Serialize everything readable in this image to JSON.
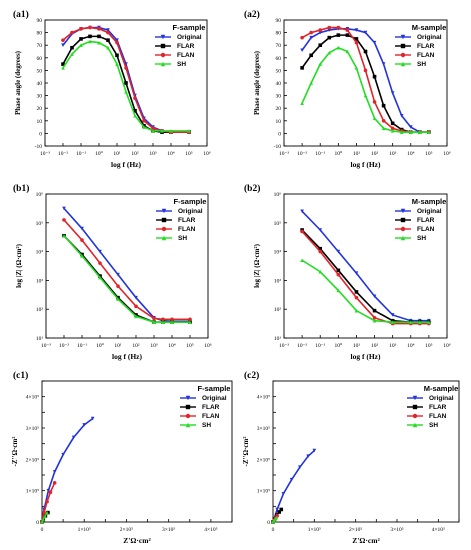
{
  "series_style": [
    {
      "name": "Original",
      "color": "#2233dd",
      "marker": "triangle-down"
    },
    {
      "name": "FLAR",
      "color": "#000000",
      "marker": "square"
    },
    {
      "name": "FLAN",
      "color": "#e0242a",
      "marker": "circle"
    },
    {
      "name": "SH",
      "color": "#22dd22",
      "marker": "triangle-up"
    }
  ],
  "chart_data": [
    {
      "id": "a1",
      "panel_label": "(a1)",
      "type": "line",
      "sample_title": "F-sample",
      "xlabel": "log f (Hz)",
      "ylabel": "Phase angle (degrees)",
      "x_scale": "log",
      "xlim": [
        -3,
        6
      ],
      "ylim": [
        -10,
        90
      ],
      "xticks": [
        -3,
        -2,
        -1,
        0,
        1,
        2,
        3,
        4,
        5,
        6
      ],
      "xtick_labels": [
        "10⁻³",
        "10⁻²",
        "10⁻¹",
        "10⁰",
        "10¹",
        "10²",
        "10³",
        "10⁴",
        "10⁵",
        "10⁶"
      ],
      "yticks": [
        -10,
        0,
        10,
        20,
        30,
        40,
        50,
        60,
        70,
        80,
        90
      ],
      "ytick_labels": [
        "-10",
        "0",
        "10",
        "20",
        "30",
        "40",
        "50",
        "60",
        "70",
        "80",
        "90"
      ],
      "series": [
        {
          "name": "Original",
          "x": [
            -2,
            -1.5,
            -1,
            -0.5,
            0,
            0.5,
            1,
            1.5,
            2,
            2.5,
            3,
            3.5,
            4,
            5
          ],
          "y": [
            70,
            79,
            83,
            84,
            84,
            82,
            74,
            55,
            30,
            12,
            5,
            2,
            1,
            1
          ]
        },
        {
          "name": "FLAR",
          "x": [
            -2,
            -1.5,
            -1,
            -0.5,
            0,
            0.5,
            1,
            1.5,
            2,
            2.5,
            3,
            3.5,
            4,
            5
          ],
          "y": [
            55,
            68,
            75,
            77,
            77,
            74,
            62,
            40,
            18,
            6,
            2,
            1,
            1,
            1
          ]
        },
        {
          "name": "FLAN",
          "x": [
            -2,
            -1.5,
            -1,
            -0.5,
            0,
            0.5,
            1,
            1.5,
            2,
            2.5,
            3,
            3.5,
            4,
            5
          ],
          "y": [
            74,
            80,
            83,
            84,
            83,
            80,
            72,
            52,
            28,
            10,
            4,
            2,
            1,
            1
          ]
        },
        {
          "name": "SH",
          "x": [
            -2,
            -1.5,
            -1,
            -0.5,
            0,
            0.5,
            1,
            1.5,
            2,
            2.5,
            3,
            3.5,
            4,
            5
          ],
          "y": [
            52,
            63,
            70,
            73,
            72,
            68,
            55,
            33,
            14,
            5,
            2,
            2,
            2,
            2
          ]
        }
      ]
    },
    {
      "id": "a2",
      "panel_label": "(a2)",
      "type": "line",
      "sample_title": "M-sample",
      "xlabel": "log f (Hz)",
      "ylabel": "Phase angle (degrees)",
      "x_scale": "log",
      "xlim": [
        -3,
        6
      ],
      "ylim": [
        -10,
        90
      ],
      "xticks": [
        -3,
        -2,
        -1,
        0,
        1,
        2,
        3,
        4,
        5,
        6
      ],
      "xtick_labels": [
        "10⁻³",
        "10⁻²",
        "10⁻¹",
        "10⁰",
        "10¹",
        "10²",
        "10³",
        "10⁴",
        "10⁵",
        "10⁶"
      ],
      "yticks": [
        -10,
        0,
        10,
        20,
        30,
        40,
        50,
        60,
        70,
        80,
        90
      ],
      "ytick_labels": [
        "-10",
        "0",
        "10",
        "20",
        "30",
        "40",
        "50",
        "60",
        "70",
        "80",
        "90"
      ],
      "series": [
        {
          "name": "Original",
          "x": [
            -2,
            -1.5,
            -1,
            -0.5,
            0,
            0.5,
            1,
            1.5,
            2,
            2.5,
            3,
            3.5,
            4,
            4.5,
            5
          ],
          "y": [
            66,
            76,
            80,
            82,
            83,
            83,
            82,
            80,
            72,
            55,
            32,
            14,
            5,
            1,
            1
          ]
        },
        {
          "name": "FLAR",
          "x": [
            -2,
            -1.5,
            -1,
            -0.5,
            0,
            0.5,
            1,
            1.5,
            2,
            2.5,
            3,
            3.5,
            4,
            4.5,
            5
          ],
          "y": [
            52,
            62,
            70,
            76,
            78,
            78,
            75,
            65,
            45,
            22,
            8,
            3,
            1,
            1,
            1
          ]
        },
        {
          "name": "FLAN",
          "x": [
            -2,
            -1.5,
            -1,
            -0.5,
            0,
            0.5,
            1,
            1.5,
            2,
            2.5,
            3,
            3.5,
            4,
            4.5,
            5
          ],
          "y": [
            76,
            80,
            82,
            84,
            84,
            82,
            72,
            50,
            25,
            10,
            4,
            2,
            1,
            1,
            1
          ]
        },
        {
          "name": "SH",
          "x": [
            -2,
            -1.5,
            -1,
            -0.5,
            0,
            0.5,
            1,
            1.5,
            2,
            2.5,
            3,
            3.5,
            4,
            4.5,
            5
          ],
          "y": [
            24,
            40,
            55,
            64,
            68,
            65,
            52,
            30,
            12,
            4,
            2,
            1,
            1,
            1,
            1
          ]
        }
      ]
    },
    {
      "id": "b1",
      "panel_label": "(b1)",
      "type": "line",
      "sample_title": "F-sample",
      "xlabel": "log f (Hz)",
      "ylabel": "log |Z| (Ω·cm²)",
      "x_scale": "log",
      "y_scale": "log",
      "xlim": [
        -3,
        6
      ],
      "ylim": [
        1,
        6
      ],
      "xticks": [
        -3,
        -2,
        -1,
        0,
        1,
        2,
        3,
        4,
        5,
        6
      ],
      "xtick_labels": [
        "10⁻³",
        "10⁻²",
        "10⁻¹",
        "10⁰",
        "10¹",
        "10²",
        "10³",
        "10⁴",
        "10⁵",
        "10⁶"
      ],
      "yticks": [
        1,
        2,
        3,
        4,
        5,
        6
      ],
      "ytick_labels": [
        "10¹",
        "10²",
        "10³",
        "10⁴",
        "10⁵",
        "10⁶"
      ],
      "series": [
        {
          "name": "Original",
          "x": [
            -2,
            -1,
            0,
            1,
            2,
            3,
            3.5,
            4,
            5
          ],
          "y": [
            5.5,
            4.8,
            4.0,
            3.2,
            2.4,
            1.7,
            1.6,
            1.58,
            1.58
          ]
        },
        {
          "name": "FLAR",
          "x": [
            -2,
            -1,
            0,
            1,
            2,
            3,
            3.5,
            4,
            5
          ],
          "y": [
            4.55,
            3.9,
            3.15,
            2.4,
            1.8,
            1.55,
            1.55,
            1.55,
            1.55
          ]
        },
        {
          "name": "FLAN",
          "x": [
            -2,
            -1,
            0,
            1,
            2,
            3,
            3.5,
            4,
            5
          ],
          "y": [
            5.1,
            4.4,
            3.6,
            2.8,
            2.1,
            1.68,
            1.65,
            1.65,
            1.65
          ]
        },
        {
          "name": "SH",
          "x": [
            -2,
            -1,
            0,
            1,
            2,
            3,
            3.5,
            4,
            5
          ],
          "y": [
            4.55,
            3.85,
            3.1,
            2.35,
            1.75,
            1.55,
            1.55,
            1.55,
            1.55
          ]
        }
      ]
    },
    {
      "id": "b2",
      "panel_label": "(b2)",
      "type": "line",
      "sample_title": "M-sample",
      "xlabel": "log f (Hz)",
      "ylabel": "log |Z| (Ω·cm²)",
      "x_scale": "log",
      "y_scale": "log",
      "xlim": [
        -3,
        6
      ],
      "ylim": [
        1,
        6
      ],
      "xticks": [
        -3,
        -2,
        -1,
        0,
        1,
        2,
        3,
        4,
        5,
        6
      ],
      "xtick_labels": [
        "10⁻³",
        "10⁻²",
        "10⁻¹",
        "10⁰",
        "10¹",
        "10²",
        "10³",
        "10⁴",
        "10⁵",
        "10⁶"
      ],
      "yticks": [
        1,
        2,
        3,
        4,
        5,
        6
      ],
      "ytick_labels": [
        "10¹",
        "10²",
        "10³",
        "10⁴",
        "10⁵",
        "10⁶"
      ],
      "series": [
        {
          "name": "Original",
          "x": [
            -2,
            -1,
            0,
            1,
            2,
            3,
            4,
            4.5,
            5
          ],
          "y": [
            5.4,
            4.75,
            4.0,
            3.25,
            2.45,
            1.8,
            1.6,
            1.6,
            1.6
          ]
        },
        {
          "name": "FLAR",
          "x": [
            -2,
            -1,
            0,
            1,
            2,
            3,
            4,
            4.5,
            5
          ],
          "y": [
            4.75,
            4.1,
            3.35,
            2.6,
            1.95,
            1.6,
            1.55,
            1.55,
            1.55
          ]
        },
        {
          "name": "FLAN",
          "x": [
            -2,
            -1,
            0,
            1,
            2,
            3,
            4,
            4.5,
            5
          ],
          "y": [
            4.7,
            4.0,
            3.2,
            2.4,
            1.7,
            1.5,
            1.5,
            1.5,
            1.5
          ]
        },
        {
          "name": "SH",
          "x": [
            -2,
            -1,
            0,
            1,
            2,
            3,
            4,
            4.5,
            5
          ],
          "y": [
            3.7,
            3.3,
            2.65,
            1.95,
            1.6,
            1.55,
            1.55,
            1.55,
            1.55
          ]
        }
      ]
    },
    {
      "id": "c1",
      "panel_label": "(c1)",
      "type": "scatter",
      "sample_title": "F-sample",
      "xlabel": "Z'Ω·cm²",
      "ylabel": "-Z''Ω·cm²",
      "xlim": [
        0,
        450000
      ],
      "ylim": [
        0,
        450000
      ],
      "xticks": [
        0,
        50000,
        100000,
        150000,
        200000,
        250000,
        300000,
        350000,
        400000,
        450000
      ],
      "xtick_labels": [
        "0",
        "",
        "1×10⁵",
        "",
        "2×10⁵",
        "",
        "3×10⁵",
        "",
        "4×10⁵",
        ""
      ],
      "yticks": [
        0,
        50000,
        100000,
        150000,
        200000,
        250000,
        300000,
        350000,
        400000,
        450000
      ],
      "ytick_labels": [
        "0",
        "",
        "1×10⁵",
        "",
        "2×10⁵",
        "",
        "3×10⁵",
        "",
        "4×10⁵",
        ""
      ],
      "series": [
        {
          "name": "Original",
          "x": [
            0,
            5000,
            15000,
            30000,
            50000,
            75000,
            100000,
            120000
          ],
          "y": [
            0,
            40000,
            100000,
            160000,
            215000,
            270000,
            310000,
            330000
          ]
        },
        {
          "name": "FLAR",
          "x": [
            0,
            3000,
            8000,
            14000
          ],
          "y": [
            0,
            8000,
            20000,
            30000
          ]
        },
        {
          "name": "FLAN",
          "x": [
            0,
            5000,
            12000,
            20000,
            30000
          ],
          "y": [
            0,
            30000,
            65000,
            95000,
            125000
          ]
        },
        {
          "name": "SH",
          "x": [
            0,
            3000,
            7000,
            12000
          ],
          "y": [
            0,
            8000,
            18000,
            30000
          ]
        }
      ]
    },
    {
      "id": "c2",
      "panel_label": "(c2)",
      "type": "scatter",
      "sample_title": "M-sample",
      "xlabel": "Z'Ω·cm²",
      "ylabel": "-Z''Ω·cm²",
      "xlim": [
        0,
        450000
      ],
      "ylim": [
        0,
        450000
      ],
      "xticks": [
        0,
        50000,
        100000,
        150000,
        200000,
        250000,
        300000,
        350000,
        400000,
        450000
      ],
      "xtick_labels": [
        "0",
        "",
        "1×10⁵",
        "",
        "2×10⁵",
        "",
        "3×10⁵",
        "",
        "4×10⁵",
        ""
      ],
      "yticks": [
        0,
        50000,
        100000,
        150000,
        200000,
        250000,
        300000,
        350000,
        400000,
        450000
      ],
      "ytick_labels": [
        "0",
        "",
        "1×10⁵",
        "",
        "2×10⁵",
        "",
        "3×10⁵",
        "",
        "4×10⁵",
        ""
      ],
      "series": [
        {
          "name": "Original",
          "x": [
            0,
            10000,
            25000,
            45000,
            65000,
            85000,
            100000
          ],
          "y": [
            0,
            40000,
            90000,
            135000,
            175000,
            210000,
            228000
          ]
        },
        {
          "name": "FLAR",
          "x": [
            0,
            4000,
            9000,
            15000,
            20000
          ],
          "y": [
            0,
            10000,
            22000,
            32000,
            40000
          ]
        },
        {
          "name": "FLAN",
          "x": [
            0,
            3000,
            6000,
            10000
          ],
          "y": [
            0,
            6000,
            12000,
            20000
          ]
        },
        {
          "name": "SH",
          "x": [
            0,
            2000,
            5000,
            8000
          ],
          "y": [
            0,
            4000,
            9000,
            14000
          ]
        }
      ]
    }
  ]
}
